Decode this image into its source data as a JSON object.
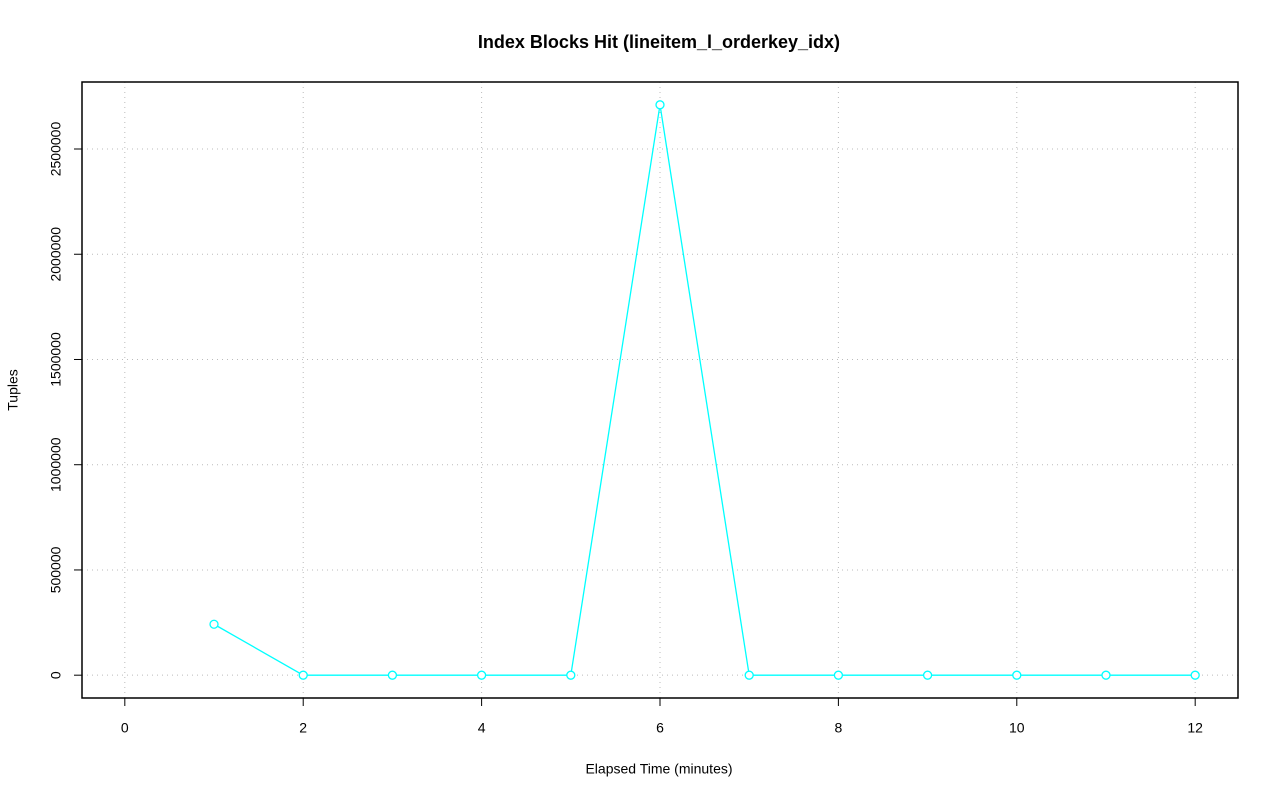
{
  "chart_data": {
    "type": "line",
    "title": "Index Blocks Hit (lineitem_l_orderkey_idx)",
    "x_label": "Elapsed Time (minutes)",
    "y_label": "Tuples",
    "x": [
      1,
      2,
      3,
      4,
      5,
      6,
      7,
      8,
      9,
      10,
      11,
      12
    ],
    "series": [
      {
        "color": "#00ffff",
        "values": [
          242000,
          0,
          0,
          0,
          0,
          2710000,
          0,
          0,
          0,
          0,
          0,
          0
        ]
      }
    ],
    "xlim": [
      -0.48,
      12.48
    ],
    "xticks": [
      0,
      2,
      4,
      6,
      8,
      10,
      12
    ],
    "ylim": [
      -108400,
      2818400
    ],
    "yticks": [
      0,
      500000,
      1000000,
      1500000,
      2000000,
      2500000
    ],
    "grid": true,
    "markers": true
  }
}
